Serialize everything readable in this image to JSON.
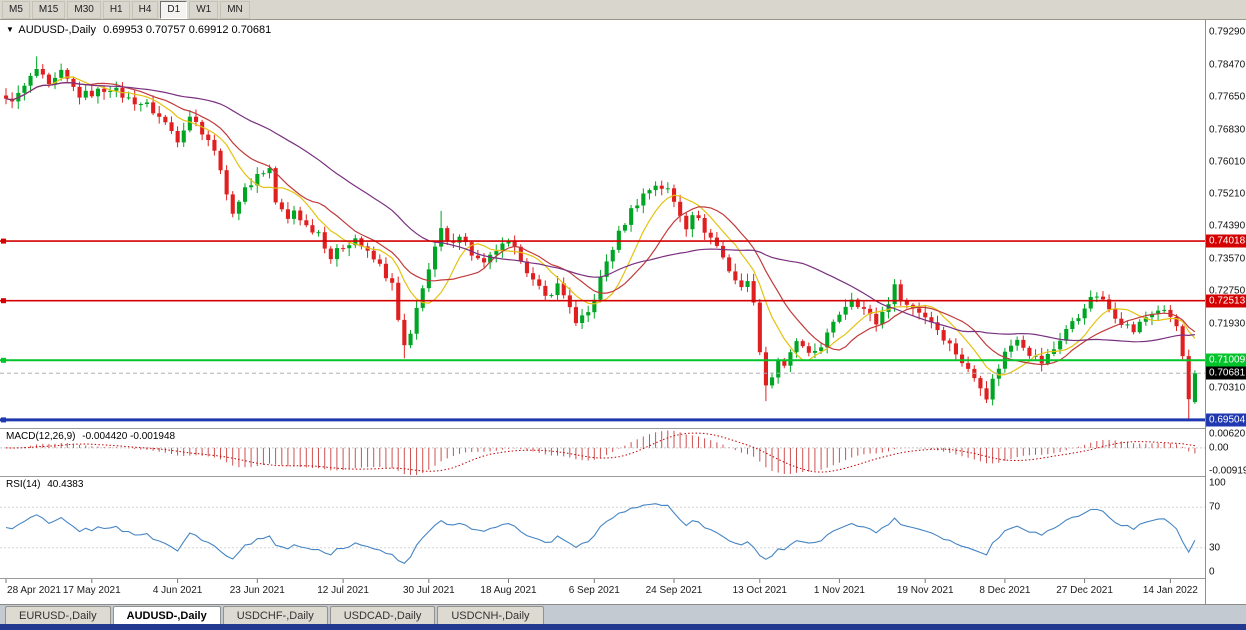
{
  "toolbar": {
    "timeframes": [
      {
        "label": "M5",
        "active": false
      },
      {
        "label": "M15",
        "active": false
      },
      {
        "label": "M30",
        "active": false
      },
      {
        "label": "H1",
        "active": false
      },
      {
        "label": "H4",
        "active": false
      },
      {
        "label": "D1",
        "active": true
      },
      {
        "label": "W1",
        "active": false
      },
      {
        "label": "MN",
        "active": false
      }
    ]
  },
  "icons": {
    "chart_dropdown": "▼"
  },
  "chart": {
    "title_symbol": "AUDUSD-,Daily",
    "title_ohlc": "0.69953 0.70757 0.69912 0.70681"
  },
  "chart_data": {
    "type": "candlestick",
    "symbol": "AUDUSD",
    "timeframe": "Daily",
    "num_candles": 195,
    "ylim": [
      0.693,
      0.796
    ],
    "y_axis_labels": [
      "0.79290",
      "0.78470",
      "0.77650",
      "0.76830",
      "0.76010",
      "0.75210",
      "0.74390",
      "0.73570",
      "0.72750",
      "0.71930",
      "0.70310"
    ],
    "x_axis_labels": [
      [
        0,
        "28 Apr 2021"
      ],
      [
        14,
        "17 May 2021"
      ],
      [
        28,
        "4 Jun 2021"
      ],
      [
        41,
        "23 Jun 2021"
      ],
      [
        55,
        "12 Jul 2021"
      ],
      [
        69,
        "30 Jul 2021"
      ],
      [
        82,
        "18 Aug 2021"
      ],
      [
        96,
        "6 Sep 2021"
      ],
      [
        109,
        "24 Sep 2021"
      ],
      [
        123,
        "13 Oct 2021"
      ],
      [
        136,
        "1 Nov 2021"
      ],
      [
        150,
        "19 Nov 2021"
      ],
      [
        163,
        "8 Dec 2021"
      ],
      [
        176,
        "27 Dec 2021"
      ],
      [
        190,
        "14 Jan 2022"
      ]
    ],
    "last_ohlc": {
      "open": 0.69953,
      "high": 0.70757,
      "low": 0.69912,
      "close": 0.70681
    },
    "close_anchors": [
      [
        0,
        0.7755
      ],
      [
        2,
        0.777
      ],
      [
        5,
        0.7835
      ],
      [
        7,
        0.779
      ],
      [
        9,
        0.7825
      ],
      [
        12,
        0.777
      ],
      [
        14,
        0.7775
      ],
      [
        17,
        0.779
      ],
      [
        20,
        0.776
      ],
      [
        23,
        0.7745
      ],
      [
        26,
        0.77
      ],
      [
        28,
        0.766
      ],
      [
        30,
        0.772
      ],
      [
        33,
        0.766
      ],
      [
        35,
        0.759
      ],
      [
        36,
        0.751
      ],
      [
        37,
        0.748
      ],
      [
        39,
        0.753
      ],
      [
        41,
        0.757
      ],
      [
        43,
        0.7585
      ],
      [
        44,
        0.75
      ],
      [
        46,
        0.7455
      ],
      [
        47,
        0.748
      ],
      [
        49,
        0.744
      ],
      [
        51,
        0.7425
      ],
      [
        53,
        0.736
      ],
      [
        55,
        0.739
      ],
      [
        57,
        0.741
      ],
      [
        59,
        0.737
      ],
      [
        61,
        0.734
      ],
      [
        63,
        0.729
      ],
      [
        64,
        0.72
      ],
      [
        65,
        0.7135
      ],
      [
        66,
        0.716
      ],
      [
        67,
        0.723
      ],
      [
        68,
        0.729
      ],
      [
        69,
        0.733
      ],
      [
        70,
        0.738
      ],
      [
        71,
        0.743
      ],
      [
        72,
        0.7395
      ],
      [
        74,
        0.742
      ],
      [
        76,
        0.737
      ],
      [
        78,
        0.734
      ],
      [
        80,
        0.738
      ],
      [
        82,
        0.7395
      ],
      [
        84,
        0.736
      ],
      [
        86,
        0.73
      ],
      [
        88,
        0.726
      ],
      [
        90,
        0.729
      ],
      [
        92,
        0.724
      ],
      [
        93,
        0.719
      ],
      [
        95,
        0.722
      ],
      [
        96,
        0.726
      ],
      [
        98,
        0.735
      ],
      [
        100,
        0.742
      ],
      [
        102,
        0.748
      ],
      [
        104,
        0.752
      ],
      [
        106,
        0.7545
      ],
      [
        108,
        0.753
      ],
      [
        109,
        0.75
      ],
      [
        111,
        0.744
      ],
      [
        112,
        0.7475
      ],
      [
        114,
        0.743
      ],
      [
        116,
        0.739
      ],
      [
        118,
        0.733
      ],
      [
        120,
        0.728
      ],
      [
        121,
        0.731
      ],
      [
        122,
        0.724
      ],
      [
        123,
        0.713
      ],
      [
        124,
        0.704
      ],
      [
        125,
        0.706
      ],
      [
        126,
        0.7105
      ],
      [
        127,
        0.708
      ],
      [
        129,
        0.715
      ],
      [
        131,
        0.711
      ],
      [
        133,
        0.714
      ],
      [
        135,
        0.719
      ],
      [
        136,
        0.722
      ],
      [
        138,
        0.726
      ],
      [
        140,
        0.723
      ],
      [
        142,
        0.7195
      ],
      [
        144,
        0.725
      ],
      [
        145,
        0.7285
      ],
      [
        147,
        0.724
      ],
      [
        149,
        0.7225
      ],
      [
        151,
        0.72
      ],
      [
        153,
        0.716
      ],
      [
        155,
        0.712
      ],
      [
        157,
        0.7075
      ],
      [
        159,
        0.704
      ],
      [
        160,
        0.701
      ],
      [
        161,
        0.705
      ],
      [
        163,
        0.712
      ],
      [
        165,
        0.716
      ],
      [
        167,
        0.712
      ],
      [
        169,
        0.7095
      ],
      [
        171,
        0.713
      ],
      [
        173,
        0.718
      ],
      [
        175,
        0.721
      ],
      [
        176,
        0.724
      ],
      [
        178,
        0.7265
      ],
      [
        180,
        0.723
      ],
      [
        182,
        0.72
      ],
      [
        184,
        0.7175
      ],
      [
        186,
        0.721
      ],
      [
        188,
        0.723
      ],
      [
        190,
        0.721
      ],
      [
        191,
        0.7185
      ],
      [
        192,
        0.711
      ],
      [
        193,
        0.6997
      ],
      [
        194,
        0.70681
      ]
    ],
    "wick_overrides": {
      "5": {
        "high": 0.7868
      },
      "65": {
        "low": 0.7106
      },
      "71": {
        "high": 0.7478
      },
      "124": {
        "low": 0.6998
      },
      "160": {
        "low": 0.6993
      },
      "193": {
        "low": 0.6952
      }
    },
    "candle_colors": {
      "up": "#00a524",
      "down": "#e02020"
    },
    "moving_averages": [
      {
        "period": 8,
        "color": "#e3c211"
      },
      {
        "period": 14,
        "color": "#c23a3a"
      },
      {
        "period": 34,
        "color": "#7a3080"
      }
    ],
    "levels": [
      {
        "value": 0.74018,
        "label": "0.74018",
        "color": "#d40000",
        "width": 1.6
      },
      {
        "value": 0.72513,
        "label": "0.72513",
        "color": "#d40000",
        "width": 1.6
      },
      {
        "value": 0.71009,
        "label": "0.71009",
        "color": "#00c42a",
        "width": 2
      },
      {
        "value": 0.69504,
        "label": "0.69504",
        "color": "#2038b0",
        "width": 3
      }
    ],
    "current_price": {
      "value": 0.70681,
      "label": "0.70681",
      "badge_color": "#000000"
    },
    "indicators": {
      "macd": {
        "label": "MACD(12,26,9)",
        "values_text": "-0.004420 -0.001948",
        "fast": 12,
        "slow": 26,
        "signal": 9,
        "ylim": [
          -0.0092,
          0.0062
        ],
        "y_axis_labels": [
          "0.00620",
          "0.00",
          "-0.00919"
        ],
        "histogram_color": "#d05050",
        "signal_color": "#c00000"
      },
      "rsi": {
        "label": "RSI(14)",
        "period": 14,
        "value_text": "40.4383",
        "ylim": [
          0,
          100
        ],
        "levels": [
          70,
          30
        ],
        "y_axis_labels": [
          "100",
          "70",
          "30",
          "0"
        ],
        "line_color": "#4585c4"
      }
    }
  },
  "tabs": [
    {
      "label": "EURUSD-,Daily",
      "active": false
    },
    {
      "label": "AUDUSD-,Daily",
      "active": true
    },
    {
      "label": "USDCHF-,Daily",
      "active": false
    },
    {
      "label": "USDCAD-,Daily",
      "active": false
    },
    {
      "label": "USDCNH-,Daily",
      "active": false
    }
  ]
}
